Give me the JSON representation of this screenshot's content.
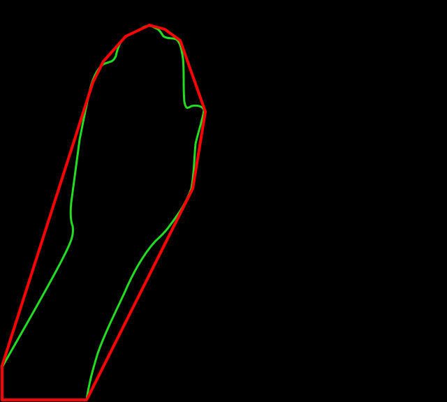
{
  "canvas": {
    "background_color": "#000000"
  },
  "outlines": [
    {
      "name": "convex-hull-outline",
      "color": "#ff0000",
      "shape": "polygon"
    },
    {
      "name": "contour-outline",
      "color": "#22dd22",
      "shape": "freeform-curve"
    }
  ]
}
